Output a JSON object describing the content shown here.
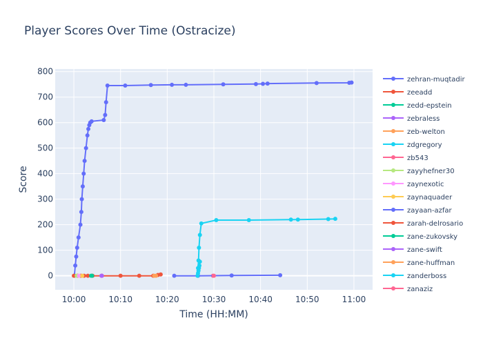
{
  "chart_data": {
    "type": "line",
    "title": "Player Scores Over Time (Ostracize)",
    "xlabel": "Time (HH:MM)",
    "ylabel": "Score",
    "x_unit": "minutes after 10:00",
    "xlim": [
      -4,
      64
    ],
    "ylim": [
      -55,
      810
    ],
    "x_ticks": [
      {
        "value": 0,
        "label": "10:00"
      },
      {
        "value": 10,
        "label": "10:10"
      },
      {
        "value": 20,
        "label": "10:20"
      },
      {
        "value": 30,
        "label": "10:30"
      },
      {
        "value": 40,
        "label": "10:40"
      },
      {
        "value": 50,
        "label": "10:50"
      },
      {
        "value": 60,
        "label": "11:00"
      }
    ],
    "y_ticks": [
      0,
      100,
      200,
      300,
      400,
      500,
      600,
      700,
      800
    ],
    "grid": true,
    "legend_position": "right",
    "series": [
      {
        "name": "zehran-muqtadir",
        "color": "#636efa",
        "x": [
          0.1,
          0.3,
          0.5,
          0.7,
          1.0,
          1.4,
          1.6,
          1.7,
          1.9,
          2.1,
          2.3,
          2.6,
          2.9,
          3.1,
          3.3,
          3.5,
          3.8,
          6.4,
          6.7,
          6.9,
          7.2,
          11,
          16.5,
          21,
          24,
          32,
          39,
          40.5,
          41.5,
          52,
          59,
          59.5
        ],
        "y": [
          0,
          40,
          75,
          110,
          150,
          200,
          250,
          300,
          350,
          400,
          450,
          500,
          550,
          575,
          590,
          600,
          605,
          610,
          630,
          680,
          745,
          745,
          747,
          748,
          748,
          750,
          751,
          752,
          753,
          755,
          756,
          757
        ]
      },
      {
        "name": "zeeadd",
        "color": "#EF553B",
        "x": [
          0,
          0.8,
          1.5,
          2.2,
          3.0,
          4.0,
          6.0,
          10,
          14,
          17,
          18
        ],
        "y": [
          0,
          0,
          0,
          0,
          0,
          0,
          0,
          0,
          0,
          0,
          3
        ]
      },
      {
        "name": "zedd-epstein",
        "color": "#00cc96",
        "x": [
          3.9
        ],
        "y": [
          0
        ]
      },
      {
        "name": "zebraless",
        "color": "#ab63fa",
        "x": [
          5.9
        ],
        "y": [
          0
        ]
      },
      {
        "name": "zeb-welton",
        "color": "#FFA15A",
        "x": [
          17.2
        ],
        "y": [
          0
        ]
      },
      {
        "name": "zdgregory",
        "color": "#19d3f3",
        "x": [
          26.5,
          26.6,
          26.7,
          26.8,
          27.0,
          27.3,
          30.5,
          37.5,
          46.5,
          48,
          54.5,
          56
        ],
        "y": [
          0,
          30,
          60,
          110,
          160,
          205,
          218,
          218,
          220,
          220,
          222,
          223
        ]
      },
      {
        "name": "zb543",
        "color": "#FF6692",
        "x": [
          29.8
        ],
        "y": [
          0
        ]
      },
      {
        "name": "zayyhefner30",
        "color": "#B6E880",
        "x": [
          0.6
        ],
        "y": [
          0
        ]
      },
      {
        "name": "zaynexotic",
        "color": "#FF97FF",
        "x": [
          1.1
        ],
        "y": [
          0
        ]
      },
      {
        "name": "zaynaquader",
        "color": "#FECB52",
        "x": [
          1.8
        ],
        "y": [
          0
        ]
      },
      {
        "name": "zayaan-azfar",
        "color": "#636efa",
        "x": [
          21.5,
          26.6,
          33.8,
          44.2
        ],
        "y": [
          0,
          0,
          1,
          2
        ]
      },
      {
        "name": "zarah-delrosario",
        "color": "#EF553B",
        "x": [
          18.6
        ],
        "y": [
          5
        ]
      },
      {
        "name": "zane-zukovsky",
        "color": "#00cc96",
        "x": [
          3.7
        ],
        "y": [
          0
        ]
      },
      {
        "name": "zane-swift",
        "color": "#ab63fa",
        "x": [
          6.0
        ],
        "y": [
          0
        ]
      },
      {
        "name": "zane-huffman",
        "color": "#FFA15A",
        "x": [
          17.6
        ],
        "y": [
          0
        ]
      },
      {
        "name": "zanderboss",
        "color": "#19d3f3",
        "x": [
          26.5,
          26.6,
          26.7,
          26.8,
          26.9,
          27.0
        ],
        "y": [
          0,
          10,
          20,
          30,
          40,
          55
        ]
      },
      {
        "name": "zanaziz",
        "color": "#FF6692",
        "x": [
          30.0
        ],
        "y": [
          0
        ]
      }
    ]
  }
}
